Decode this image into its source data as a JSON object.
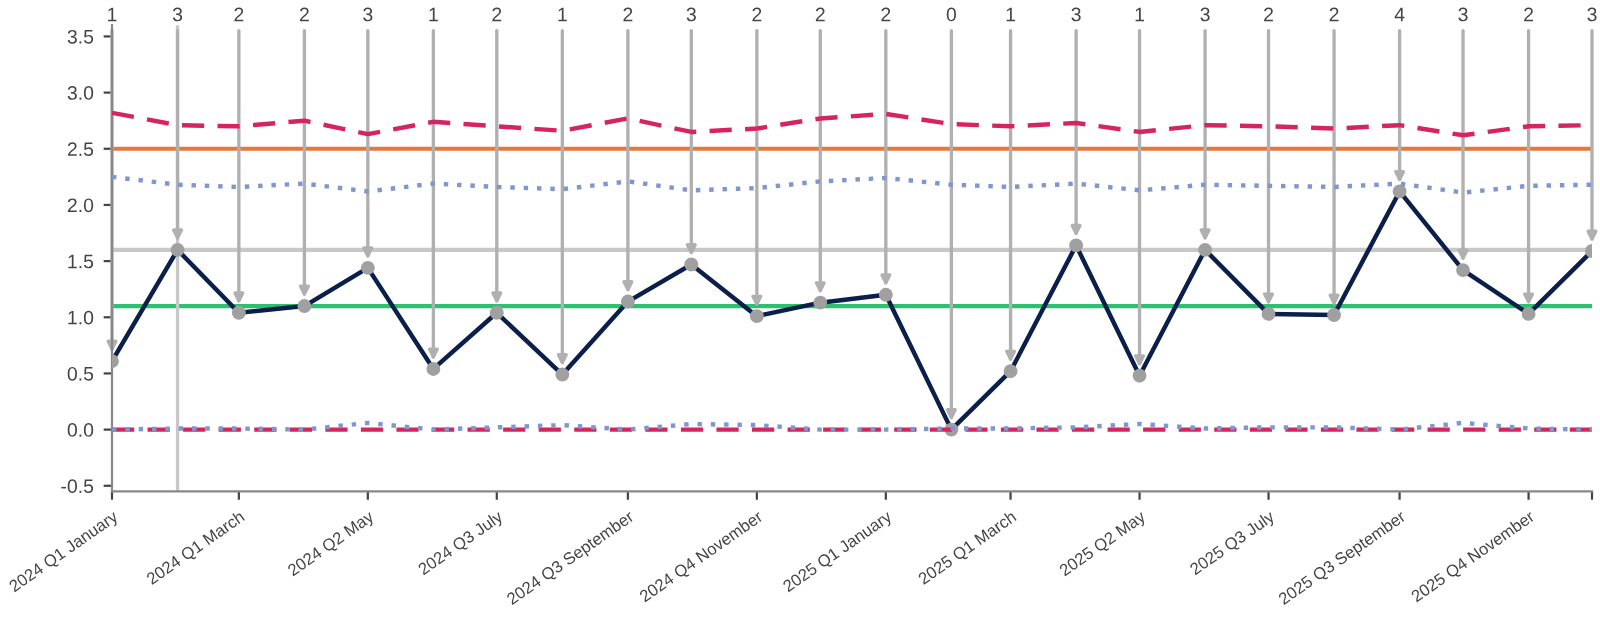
{
  "chart_data": {
    "type": "line",
    "x": [
      "2024-01",
      "2024-02",
      "2024-03",
      "2024-04",
      "2024-05",
      "2024-06",
      "2024-07",
      "2024-08",
      "2024-09",
      "2024-10",
      "2024-11",
      "2024-12",
      "2025-01",
      "2025-02",
      "2025-03",
      "2025-04",
      "2025-05",
      "2025-06",
      "2025-07",
      "2025-08",
      "2025-09",
      "2025-10",
      "2025-11",
      "2025-12"
    ],
    "series": [
      {
        "color": "#0b1f4b",
        "line_style": "solid",
        "marker": "circle",
        "values": [
          0.61,
          1.6,
          1.04,
          1.1,
          1.44,
          0.54,
          1.04,
          0.49,
          1.14,
          1.47,
          1.01,
          1.13,
          1.2,
          0.0,
          0.52,
          1.64,
          0.48,
          1.6,
          1.03,
          1.02,
          2.12,
          1.42,
          1.03,
          1.59
        ]
      },
      {
        "color": "#d6245f",
        "line_style": "dashed",
        "marker": "none",
        "values": [
          2.82,
          2.71,
          2.7,
          2.75,
          2.63,
          2.74,
          2.7,
          2.66,
          2.77,
          2.65,
          2.68,
          2.77,
          2.81,
          2.72,
          2.7,
          2.73,
          2.65,
          2.71,
          2.7,
          2.68,
          2.71,
          2.62,
          2.7,
          2.71
        ]
      },
      {
        "color": "#7f96d0",
        "line_style": "dotted",
        "marker": "none",
        "values": [
          2.25,
          2.18,
          2.16,
          2.19,
          2.12,
          2.19,
          2.16,
          2.14,
          2.21,
          2.13,
          2.15,
          2.21,
          2.24,
          2.18,
          2.16,
          2.19,
          2.13,
          2.18,
          2.17,
          2.16,
          2.19,
          2.11,
          2.17,
          2.18
        ]
      },
      {
        "color": "#d6245f",
        "line_style": "dashed",
        "marker": "none",
        "values": [
          0,
          0,
          0,
          0,
          0,
          0,
          0,
          0,
          0,
          0,
          0,
          0,
          0,
          0,
          0,
          0,
          0,
          0,
          0,
          0,
          0,
          0,
          0,
          0
        ]
      },
      {
        "color": "#7f96d0",
        "line_style": "dotted",
        "marker": "none",
        "values": [
          0,
          0.01,
          0.01,
          0,
          0.06,
          0,
          0.02,
          0.04,
          0,
          0.05,
          0.04,
          0,
          0,
          0.01,
          0.01,
          0.02,
          0.05,
          0.01,
          0.02,
          0.02,
          0,
          0.06,
          0.01,
          0
        ]
      }
    ],
    "ylim": [
      -0.55,
      3.6
    ],
    "yticks": [
      {
        "value": -0.5,
        "label": "-0.5"
      },
      {
        "value": 0,
        "label": "0.0"
      },
      {
        "value": 0.5,
        "label": "0.5"
      },
      {
        "value": 1,
        "label": "1.0"
      },
      {
        "value": 1.5,
        "label": "1.5"
      },
      {
        "value": 2,
        "label": "2.0"
      },
      {
        "value": 2.5,
        "label": "2.5"
      },
      {
        "value": 3,
        "label": "3.0"
      },
      {
        "value": 3.5,
        "label": "3.5"
      }
    ],
    "xlim": [
      "2024-01",
      "2025-12"
    ],
    "xticks": [
      {
        "value": "2024-01",
        "label": "2024 Q1 January"
      },
      {
        "value": "2024-03",
        "label": "2024 Q1 March"
      },
      {
        "value": "2024-05",
        "label": "2024 Q2 May"
      },
      {
        "value": "2024-07",
        "label": "2024 Q3 July"
      },
      {
        "value": "2024-09",
        "label": "2024 Q3 September"
      },
      {
        "value": "2024-11",
        "label": "2024 Q4 November"
      },
      {
        "value": "2025-01",
        "label": "2025 Q1 January"
      },
      {
        "value": "2025-03",
        "label": "2025 Q1 March"
      },
      {
        "value": "2025-05",
        "label": "2025 Q2 May"
      },
      {
        "value": "2025-07",
        "label": "2025 Q3 July"
      },
      {
        "value": "2025-09",
        "label": "2025 Q3 September"
      },
      {
        "value": "2025-11",
        "label": "2025 Q4 November"
      },
      {
        "value": "2025-12",
        "label": null
      }
    ],
    "ref_lines": [
      {
        "axis": "y",
        "value": 2.5,
        "color": "#e8773a",
        "line_style": "solid"
      },
      {
        "axis": "y",
        "value": 1.6,
        "color": "#c8c8c8",
        "line_style": "solid"
      },
      {
        "axis": "y",
        "value": 1.1,
        "color": "#2fbf71",
        "line_style": "solid"
      },
      {
        "axis": "x",
        "value": "2024-02",
        "color": "#c8c8c8",
        "line_style": "solid"
      }
    ],
    "annotations": [
      {
        "text": "1",
        "x": "2024-01",
        "y": 0.61
      },
      {
        "text": "3",
        "x": "2024-02",
        "y": 1.6
      },
      {
        "text": "2",
        "x": "2024-03",
        "y": 1.04
      },
      {
        "text": "2",
        "x": "2024-04",
        "y": 1.1
      },
      {
        "text": "3",
        "x": "2024-05",
        "y": 1.44
      },
      {
        "text": "1",
        "x": "2024-06",
        "y": 0.54
      },
      {
        "text": "2",
        "x": "2024-07",
        "y": 1.04
      },
      {
        "text": "1",
        "x": "2024-08",
        "y": 0.49
      },
      {
        "text": "2",
        "x": "2024-09",
        "y": 1.14
      },
      {
        "text": "3",
        "x": "2024-10",
        "y": 1.47
      },
      {
        "text": "2",
        "x": "2024-11",
        "y": 1.01
      },
      {
        "text": "2",
        "x": "2024-12",
        "y": 1.13
      },
      {
        "text": "2",
        "x": "2025-01",
        "y": 1.2
      },
      {
        "text": "0",
        "x": "2025-02",
        "y": 0.0
      },
      {
        "text": "1",
        "x": "2025-03",
        "y": 0.52
      },
      {
        "text": "3",
        "x": "2025-04",
        "y": 1.64
      },
      {
        "text": "1",
        "x": "2025-05",
        "y": 0.48
      },
      {
        "text": "3",
        "x": "2025-06",
        "y": 1.6
      },
      {
        "text": "2",
        "x": "2025-07",
        "y": 1.03
      },
      {
        "text": "2",
        "x": "2025-08",
        "y": 1.02
      },
      {
        "text": "4",
        "x": "2025-09",
        "y": 2.12
      },
      {
        "text": "3",
        "x": "2025-10",
        "y": 1.42
      },
      {
        "text": "2",
        "x": "2025-11",
        "y": 1.03
      },
      {
        "text": "3",
        "x": "2025-12",
        "y": 1.59
      }
    ],
    "grid": false,
    "legend": false
  }
}
